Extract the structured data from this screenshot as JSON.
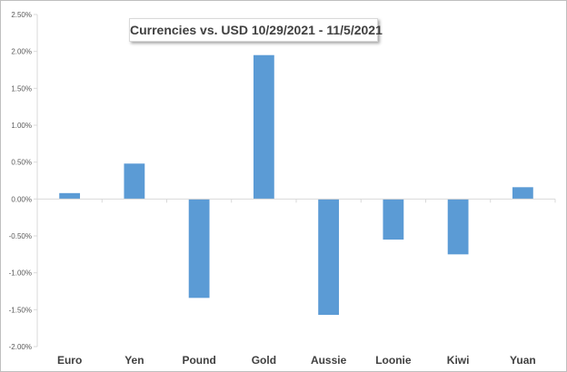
{
  "chart_data": {
    "type": "bar",
    "title": "Currencies vs. USD 10/29/2021 - 11/5/2021",
    "categories": [
      "Euro",
      "Yen",
      "Pound",
      "Gold",
      "Aussie",
      "Loonie",
      "Kiwi",
      "Yuan"
    ],
    "values": [
      0.08,
      0.48,
      -1.34,
      1.95,
      -1.57,
      -0.55,
      -0.75,
      0.16
    ],
    "ylim": [
      -2.0,
      2.5
    ],
    "yticks": [
      -2.0,
      -1.5,
      -1.0,
      -0.5,
      0.0,
      0.5,
      1.0,
      1.5,
      2.0,
      2.5
    ],
    "ytick_labels": [
      "-2.00%",
      "-1.50%",
      "-1.00%",
      "-0.50%",
      "0.00%",
      "0.50%",
      "1.00%",
      "1.50%",
      "2.00%",
      "2.50%"
    ],
    "xlabel": "",
    "ylabel": "",
    "grid": false,
    "legend": "none",
    "bar_color": "#5b9bd5",
    "axis_color": "#d9d9d9"
  }
}
